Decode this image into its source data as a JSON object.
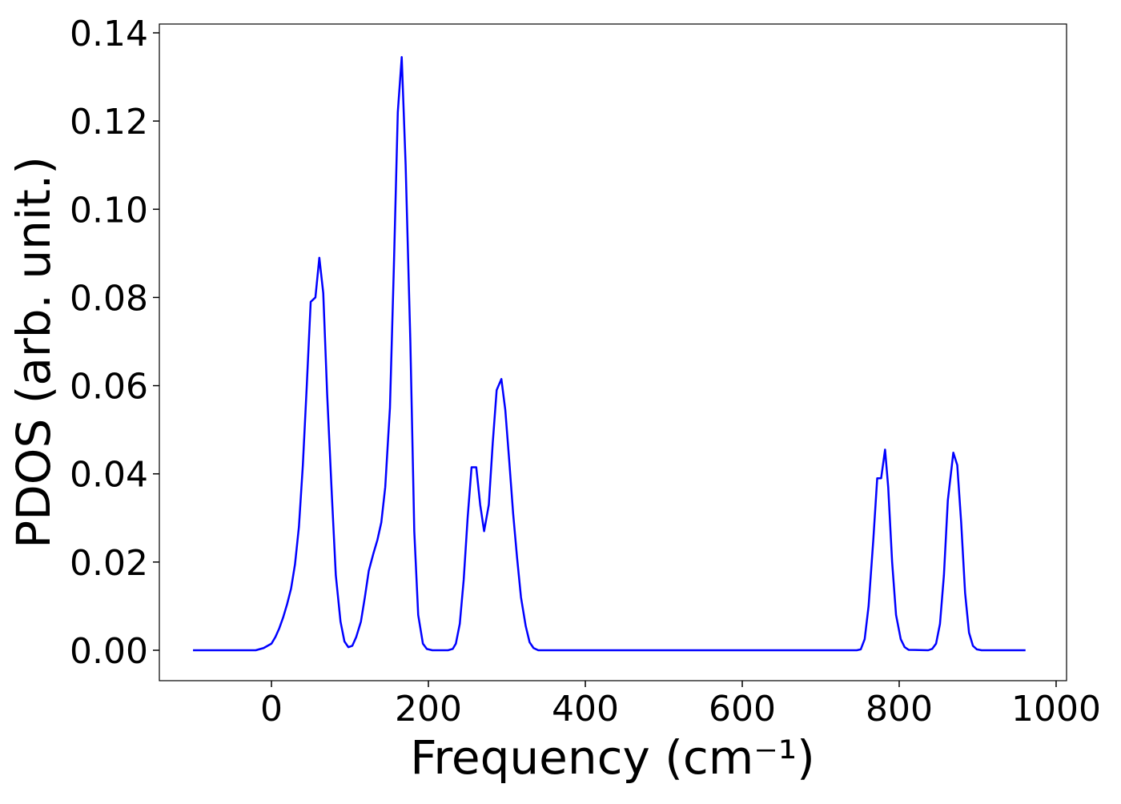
{
  "chart_data": {
    "type": "line",
    "xlabel": "Frequency (cm⁻¹)",
    "ylabel": "PDOS (arb. unit.)",
    "x": [
      -100,
      -60,
      -20,
      -10,
      0,
      5,
      10,
      15,
      20,
      25,
      30,
      35,
      40,
      45,
      50,
      56,
      61,
      66,
      71,
      77,
      82,
      88,
      93,
      98,
      103,
      108,
      114,
      119,
      124,
      130,
      135,
      140,
      145,
      151,
      156,
      161,
      166,
      171,
      177,
      182,
      187,
      193,
      198,
      205,
      225,
      231,
      235,
      240,
      245,
      250,
      255,
      261,
      266,
      271,
      277,
      282,
      287,
      293,
      298,
      303,
      308,
      313,
      318,
      324,
      329,
      334,
      340,
      500,
      746,
      751,
      756,
      761,
      767,
      772,
      777,
      782,
      786,
      791,
      796,
      802,
      807,
      812,
      837,
      842,
      847,
      852,
      857,
      862,
      869,
      874,
      879,
      884,
      889,
      894,
      899,
      905,
      961
    ],
    "series": [
      {
        "name": "PDOS",
        "color": "#0000ff",
        "values": [
          0,
          0,
          0,
          0.0005,
          0.0015,
          0.003,
          0.005,
          0.0075,
          0.0105,
          0.014,
          0.0195,
          0.028,
          0.042,
          0.06,
          0.079,
          0.08,
          0.089,
          0.081,
          0.058,
          0.035,
          0.017,
          0.0065,
          0.002,
          0.0007,
          0.001,
          0.003,
          0.0065,
          0.012,
          0.018,
          0.022,
          0.025,
          0.029,
          0.037,
          0.055,
          0.087,
          0.122,
          0.1345,
          0.11,
          0.07,
          0.027,
          0.008,
          0.0015,
          0.0003,
          0,
          0,
          0.0003,
          0.0015,
          0.006,
          0.016,
          0.03,
          0.0415,
          0.0415,
          0.033,
          0.027,
          0.033,
          0.047,
          0.059,
          0.0615,
          0.0545,
          0.043,
          0.031,
          0.021,
          0.012,
          0.0055,
          0.0018,
          0.0005,
          0,
          0,
          0,
          0.0002,
          0.0025,
          0.01,
          0.025,
          0.039,
          0.039,
          0.0455,
          0.037,
          0.02,
          0.008,
          0.0025,
          0.0007,
          0.0001,
          0,
          0.0003,
          0.0015,
          0.006,
          0.017,
          0.034,
          0.0448,
          0.042,
          0.029,
          0.013,
          0.004,
          0.001,
          0.0002,
          0,
          0
        ]
      }
    ],
    "xlim": [
      -142.9,
      1013.3
    ],
    "ylim": [
      -0.0069,
      0.142
    ],
    "xticks": [
      0,
      200,
      400,
      600,
      800,
      1000
    ],
    "yticks": [
      {
        "value": 0,
        "label": "0.00"
      },
      {
        "value": 0.02,
        "label": "0.02"
      },
      {
        "value": 0.04,
        "label": "0.04"
      },
      {
        "value": 0.06,
        "label": "0.06"
      },
      {
        "value": 0.08,
        "label": "0.08"
      },
      {
        "value": 0.1,
        "label": "0.10"
      },
      {
        "value": 0.12,
        "label": "0.12"
      },
      {
        "value": 0.14,
        "label": "0.14"
      }
    ],
    "grid": false
  }
}
